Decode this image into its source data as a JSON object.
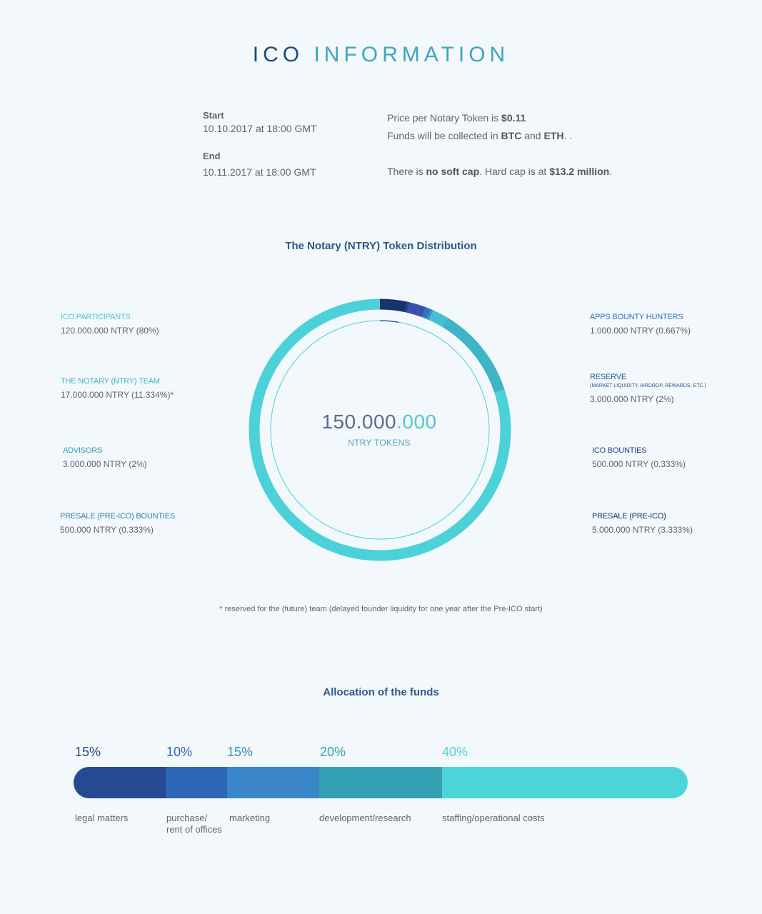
{
  "header": {
    "title_part1": "ICO",
    "title_part2": "INFORMATION"
  },
  "schedule": {
    "start_label": "Start",
    "start_value": "10.10.2017 at 18:00 GMT",
    "end_label": "End",
    "end_value": "10.11.2017 at 18:00 GMT"
  },
  "info": {
    "price_prefix": "Price per Notary Token is ",
    "price": "$0.11",
    "funds_prefix": "Funds will be collected in ",
    "currency1": "BTC",
    "funds_and": " and ",
    "currency2": "ETH",
    "funds_suffix": ". .",
    "cap_prefix": "There is ",
    "soft_cap": "no soft cap",
    "cap_mid": ". Hard cap is at ",
    "hard_cap": "$13.2 million",
    "cap_suffix": "."
  },
  "distribution": {
    "title": "The Notary (NTRY) Token Distribution",
    "total_main": "150.000",
    "total_tail": ".000",
    "unit": "NTRY TOKENS",
    "footnote": "* reserved for the (future) team (delayed founder liquidity for one year after the Pre-ICO start)",
    "items": [
      {
        "name": "ICO PARTICIPANTS",
        "value": "120.000.000 NTRY (80%)",
        "percent": 80,
        "color": "#4cd1d9"
      },
      {
        "name": "THE NOTARY (NTRY) TEAM",
        "value": "17.000.000 NTRY (11.334%)*",
        "percent": 11.334,
        "color": "#3fb3c8"
      },
      {
        "name": "ADVISORS",
        "value": "3.000.000 NTRY (2%)",
        "percent": 2,
        "color": "#44c0d1"
      },
      {
        "name": "PRESALE (PRE-ICO) BOUNTIES",
        "value": "500.000 NTRY (0.333%)",
        "percent": 0.333,
        "color": "#2f90c0"
      },
      {
        "name": "APPS BOUNTY HUNTERS",
        "value": "1.000.000 NTRY (0.667%)",
        "percent": 0.667,
        "color": "#2f73bd"
      },
      {
        "name": "RESERVE",
        "sub": "(MARKET LIQUIDITY, AIRDROP, REWARDS, ETC.)",
        "value": "3.000.000 NTRY (2%)",
        "percent": 2,
        "color": "#3a4fb0"
      },
      {
        "name": "ICO BOUNTIES",
        "value": "500.000 NTRY (0.333%)",
        "percent": 0.333,
        "color": "#25418e"
      },
      {
        "name": "PRESALE (PRE-ICO)",
        "value": "5.000.000 NTRY (3.333%)",
        "percent": 3.333,
        "color": "#17326f"
      }
    ]
  },
  "allocation": {
    "title": "Allocation of the funds",
    "items": [
      {
        "percent_label": "15%",
        "percent": 15,
        "label_line1": "legal matters",
        "label_line2": "",
        "color": "#254a92"
      },
      {
        "percent_label": "10%",
        "percent": 10,
        "label_line1": "purchase/",
        "label_line2": "rent of offices",
        "color": "#2e66b8"
      },
      {
        "percent_label": "15%",
        "percent": 15,
        "label_line1": "marketing",
        "label_line2": "",
        "color": "#3a86c8"
      },
      {
        "percent_label": "20%",
        "percent": 20,
        "label_line1": "development/research",
        "label_line2": "",
        "color": "#33a0b4"
      },
      {
        "percent_label": "40%",
        "percent": 40,
        "label_line1": "staffing/operational costs",
        "label_line2": "",
        "color": "#4dd4d9"
      }
    ]
  },
  "colors": {
    "legend_name_left": [
      "#4fc8d4",
      "#3fb3c8",
      "#3398bf",
      "#2f80b5"
    ],
    "legend_name_right": [
      "#2f73bd",
      "#2c5ea8",
      "#25418e",
      "#17326f"
    ],
    "pct_labels": [
      "#254a92",
      "#2e66b8",
      "#3a86c8",
      "#33a0b4",
      "#4dd4d9"
    ]
  }
}
